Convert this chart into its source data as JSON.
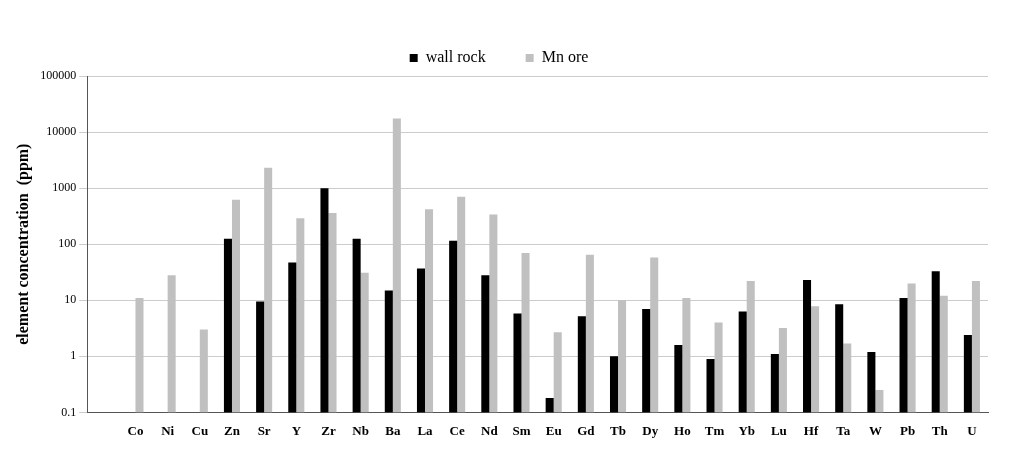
{
  "chart_data": {
    "type": "bar",
    "ylabel": "element concentration  (ppm)",
    "categories": [
      null,
      "Co",
      "Ni",
      "Cu",
      "Zn",
      "Sr",
      "Y",
      "Zr",
      "Nb",
      "Ba",
      "La",
      "Ce",
      "Nd",
      "Sm",
      "Eu",
      "Gd",
      "Tb",
      "Dy",
      "Ho",
      "Tm",
      "Yb",
      "Lu",
      "Hf",
      "Ta",
      "W",
      "Pb",
      "Th",
      "U"
    ],
    "series": [
      {
        "name": "wall rock",
        "color": "#000000",
        "values": [
          null,
          null,
          null,
          null,
          125,
          9.5,
          47,
          1000,
          125,
          15,
          37,
          115,
          28,
          5.8,
          0.18,
          5.2,
          1,
          7,
          1.6,
          0.9,
          6.3,
          1.1,
          23,
          8.5,
          1.2,
          11,
          33,
          2.4
        ]
      },
      {
        "name": "Mn ore",
        "color": "#c0c0c0",
        "values": [
          null,
          11,
          28,
          3,
          620,
          2300,
          290,
          360,
          31,
          17500,
          420,
          700,
          340,
          70,
          2.7,
          65,
          10,
          58,
          11,
          4,
          22,
          3.2,
          7.8,
          1.7,
          0.25,
          20,
          12,
          22
        ]
      }
    ],
    "log": true,
    "ylim": [
      0.1,
      100000
    ],
    "yticks": [
      0.1,
      1,
      10,
      100,
      1000,
      10000,
      100000
    ],
    "grid": "y",
    "legend": "top"
  }
}
